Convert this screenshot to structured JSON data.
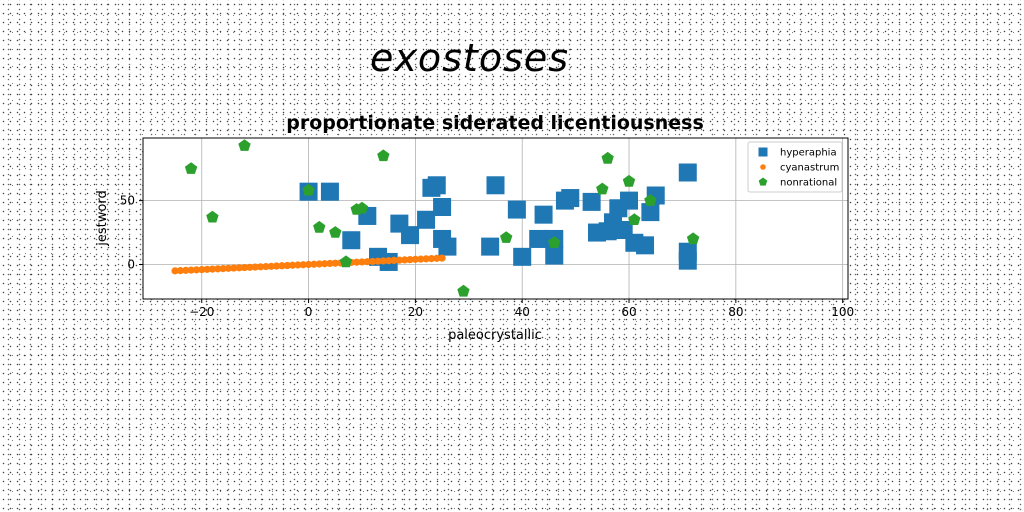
{
  "figure_title": "exostoses",
  "chart_data": {
    "type": "scatter",
    "title": "proportionate siderated licentiousness",
    "xlabel": "paleocrystallic",
    "ylabel": "jestword",
    "xlim": [
      -31,
      101
    ],
    "ylim": [
      -27,
      99
    ],
    "xticks": [
      -20,
      0,
      20,
      40,
      60,
      80,
      100
    ],
    "yticks": [
      0,
      50
    ],
    "xtick_labels": [
      "−20",
      "0",
      "20",
      "40",
      "60",
      "80",
      "100"
    ],
    "ytick_labels": [
      "0",
      "50"
    ],
    "grid": true,
    "legend_position": "top-right",
    "series": [
      {
        "name": "hyperaphia",
        "marker": "square",
        "color": "#1f77b4",
        "x": [
          0,
          4,
          8,
          11,
          13,
          15,
          17,
          19,
          22,
          23,
          24,
          25,
          25,
          26,
          34,
          35,
          39,
          40,
          43,
          44,
          46,
          46,
          48,
          49,
          53,
          54,
          56,
          57,
          58,
          59,
          60,
          61,
          63,
          64,
          65,
          71,
          71,
          71
        ],
        "y": [
          57,
          57,
          19,
          38,
          6,
          2,
          32,
          23,
          35,
          60,
          62,
          45,
          20,
          14,
          14,
          62,
          43,
          6,
          20,
          39,
          7,
          20,
          50,
          52,
          49,
          25,
          26,
          33,
          44,
          27,
          50,
          17,
          15,
          41,
          54,
          72,
          10,
          3
        ]
      },
      {
        "name": "cyanastrum",
        "marker": "circle",
        "color": "#ff7f0e",
        "x": [
          -25,
          -24,
          -23,
          -22,
          -21,
          -20,
          -19,
          -18,
          -17,
          -16,
          -15,
          -14,
          -13,
          -12,
          -11,
          -10,
          -9,
          -8,
          -7,
          -6,
          -5,
          -4,
          -3,
          -2,
          -1,
          0,
          1,
          2,
          3,
          4,
          5,
          6,
          7,
          8,
          9,
          10,
          11,
          12,
          13,
          14,
          15,
          16,
          17,
          18,
          19,
          20,
          21,
          22,
          23,
          24,
          25
        ],
        "y": [
          -5,
          -4.8,
          -4.6,
          -4.4,
          -4.2,
          -4,
          -3.8,
          -3.6,
          -3.4,
          -3.2,
          -3,
          -2.8,
          -2.6,
          -2.4,
          -2.2,
          -2,
          -1.8,
          -1.6,
          -1.4,
          -1.2,
          -1,
          -0.8,
          -0.6,
          -0.4,
          -0.2,
          0,
          0.2,
          0.4,
          0.6,
          0.8,
          1,
          1.2,
          1.4,
          1.6,
          1.8,
          2,
          2.2,
          2.4,
          2.6,
          2.8,
          3,
          3.2,
          3.4,
          3.6,
          3.8,
          4,
          4.2,
          4.4,
          4.6,
          4.8,
          5
        ]
      },
      {
        "name": "nonrational",
        "marker": "pentagon",
        "color": "#2ca02c",
        "x": [
          -22,
          -18,
          -12,
          0,
          2,
          5,
          7,
          9,
          10,
          14,
          29,
          37,
          46,
          55,
          56,
          60,
          61,
          64,
          72
        ],
        "y": [
          75,
          37,
          93,
          58,
          29,
          25,
          2,
          43,
          44,
          85,
          -21,
          21,
          17,
          59,
          83,
          65,
          35,
          50,
          20
        ]
      }
    ]
  }
}
